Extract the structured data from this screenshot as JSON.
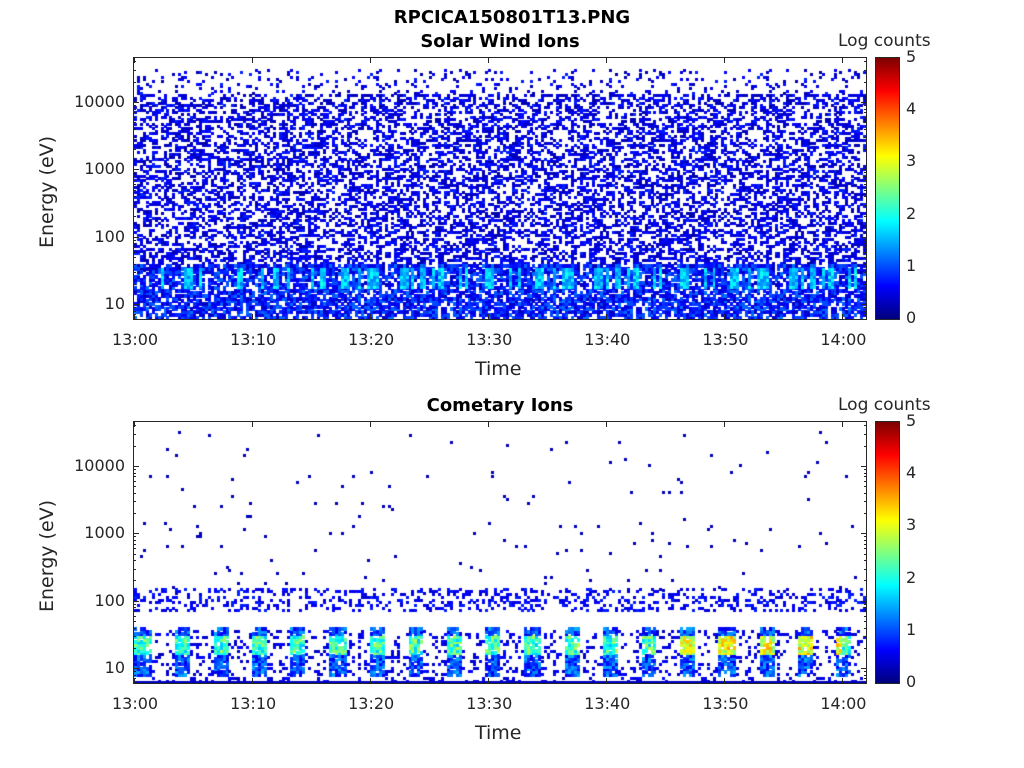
{
  "figure": {
    "title": "RPCICA150801T13.PNG"
  },
  "chart_data": [
    {
      "type": "heatmap",
      "title": "Solar Wind Ions",
      "xlabel": "Time",
      "ylabel": "Energy (eV)",
      "x_ticks": [
        "13:00",
        "13:10",
        "13:20",
        "13:30",
        "13:40",
        "13:50",
        "14:00"
      ],
      "x_range": [
        "13:00",
        "14:02"
      ],
      "y_scale": "log",
      "y_ticks": [
        "10",
        "100",
        "1000",
        "10000"
      ],
      "y_range": [
        6,
        45000
      ],
      "colorbar": {
        "label": "Log counts",
        "range": [
          0,
          5
        ],
        "ticks": [
          "0",
          "1",
          "2",
          "3",
          "4",
          "5"
        ],
        "colormap": "jet"
      },
      "description_of_values": "Sparse low log counts (~0.2-0.6) across 30 eV-20 keV; enhanced 1-2 log counts near 20-40 eV throughout; densest low-energy band below 100 eV."
    },
    {
      "type": "heatmap",
      "title": "Cometary Ions",
      "xlabel": "Time",
      "ylabel": "Energy (eV)",
      "x_ticks": [
        "13:00",
        "13:10",
        "13:20",
        "13:30",
        "13:40",
        "13:50",
        "14:00"
      ],
      "x_range": [
        "13:00",
        "14:02"
      ],
      "y_scale": "log",
      "y_ticks": [
        "10",
        "100",
        "1000",
        "10000"
      ],
      "y_range": [
        6,
        45000
      ],
      "colorbar": {
        "label": "Log counts",
        "range": [
          0,
          5
        ],
        "ticks": [
          "0",
          "1",
          "2",
          "3",
          "4",
          "5"
        ],
        "colormap": "jet"
      },
      "description_of_values": "Periodic bursts of 2-3 log counts between ~15-40 eV roughly every 3 minutes; peaks of ~3.5 log counts near 13:48-13:58; sparse low counts above 100 eV."
    }
  ]
}
